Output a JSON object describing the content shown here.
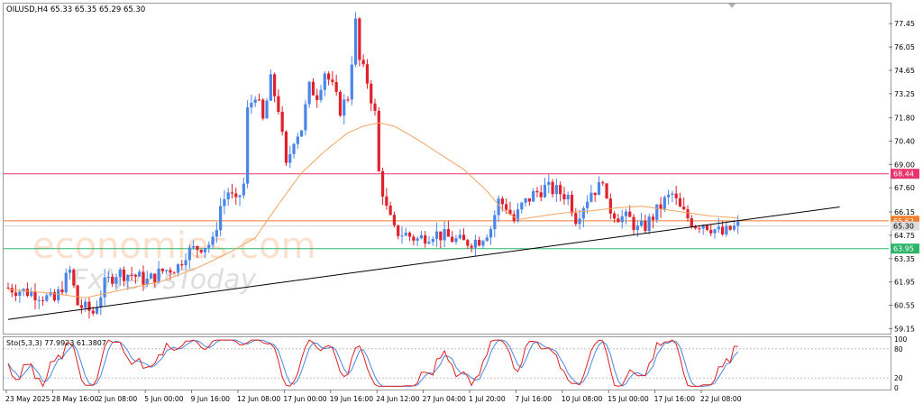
{
  "header": {
    "symbol_line": "OILUSD,H4  65.33 65.35 65.29 65.30"
  },
  "oscillator": {
    "label": "Sto(5,3,3) 77.9923 61.3807",
    "levels": [
      "100",
      "80",
      "20",
      "0"
    ]
  },
  "watermark": {
    "line1": "economies.com",
    "line2": "FxNewsToday"
  },
  "colors": {
    "bull": "#4a86e8",
    "bear": "#e0202a",
    "ma": "#f4a460",
    "trendline": "#000000",
    "resistance": "#e8336e",
    "mid_level": "#f07c2c",
    "support": "#2fb56a",
    "stoch_main": "#e02020",
    "stoch_signal": "#4a86e8"
  },
  "chart_data": {
    "type": "candlestick",
    "symbol": "OILUSD",
    "timeframe": "H4",
    "ylim": [
      58.9,
      78.6
    ],
    "y_ticks": [
      "77.45",
      "76.05",
      "74.65",
      "73.25",
      "71.80",
      "70.40",
      "69.00",
      "67.60",
      "66.15",
      "64.75",
      "63.35",
      "61.95",
      "60.55",
      "59.15"
    ],
    "x_labels": [
      "23 May 2025",
      "28 May 16:00",
      "2 Jun 08:00",
      "5 Jun 00:00",
      "9 Jun 16:00",
      "12 Jun 08:00",
      "17 Jun 00:00",
      "19 Jun 16:00",
      "24 Jun 12:00",
      "27 Jun 04:00",
      "1 Jul 20:00",
      "7 Jul 16:00",
      "10 Jul 08:00",
      "15 Jul 00:00",
      "17 Jul 16:00",
      "22 Jul 08:00"
    ],
    "horizontal_levels": [
      {
        "label": "68.44",
        "value": 68.44,
        "color": "#e8336e"
      },
      {
        "label": "65.62",
        "value": 65.62,
        "color": "#f07c2c"
      },
      {
        "label": "63.95",
        "value": 63.95,
        "color": "#2fb56a"
      }
    ],
    "current_price_label": "65.30",
    "current_price": 65.3,
    "trendline": {
      "start": {
        "bar": 0,
        "price": 59.7
      },
      "end": {
        "bar": 192,
        "price": 66.45
      }
    },
    "price_anchors": [
      [
        0,
        61.6
      ],
      [
        8,
        61.2
      ],
      [
        12,
        60.8
      ],
      [
        16,
        62.6
      ],
      [
        18,
        60.6
      ],
      [
        22,
        60.1
      ],
      [
        25,
        61.8
      ],
      [
        28,
        62.5
      ],
      [
        32,
        62.4
      ],
      [
        36,
        62.0
      ],
      [
        40,
        62.6
      ],
      [
        44,
        62.9
      ],
      [
        46,
        63.7
      ],
      [
        50,
        64.1
      ],
      [
        53,
        64.3
      ],
      [
        55,
        66.5
      ],
      [
        57,
        67.4
      ],
      [
        59,
        66.6
      ],
      [
        61,
        67.8
      ],
      [
        62,
        72.2
      ],
      [
        64,
        73.3
      ],
      [
        66,
        71.6
      ],
      [
        68,
        74.0
      ],
      [
        70,
        72.4
      ],
      [
        72,
        68.8
      ],
      [
        74,
        70.6
      ],
      [
        76,
        71.2
      ],
      [
        78,
        73.6
      ],
      [
        80,
        73.2
      ],
      [
        82,
        74.6
      ],
      [
        84,
        73.6
      ],
      [
        86,
        72.3
      ],
      [
        88,
        73.1
      ],
      [
        90,
        77.5
      ],
      [
        91,
        75.2
      ],
      [
        93,
        74.0
      ],
      [
        95,
        72.0
      ],
      [
        96,
        68.5
      ],
      [
        98,
        66.3
      ],
      [
        100,
        65.0
      ],
      [
        103,
        64.8
      ],
      [
        106,
        64.5
      ],
      [
        110,
        64.9
      ],
      [
        114,
        64.6
      ],
      [
        118,
        64.3
      ],
      [
        122,
        64.5
      ],
      [
        125,
        65.2
      ],
      [
        127,
        66.8
      ],
      [
        129,
        66.5
      ],
      [
        131,
        65.6
      ],
      [
        133,
        66.5
      ],
      [
        136,
        67.2
      ],
      [
        139,
        67.6
      ],
      [
        142,
        67.4
      ],
      [
        145,
        67.1
      ],
      [
        147,
        65.8
      ],
      [
        149,
        66.6
      ],
      [
        151,
        67.4
      ],
      [
        153,
        67.6
      ],
      [
        154,
        68.3
      ],
      [
        155,
        66.5
      ],
      [
        158,
        65.9
      ],
      [
        161,
        65.7
      ],
      [
        163,
        65.1
      ],
      [
        165,
        65.3
      ],
      [
        168,
        66.2
      ],
      [
        170,
        66.8
      ],
      [
        172,
        67.2
      ],
      [
        174,
        66.3
      ],
      [
        176,
        65.8
      ],
      [
        178,
        65.4
      ],
      [
        180,
        65.5
      ],
      [
        183,
        65.1
      ],
      [
        185,
        64.8
      ],
      [
        187,
        65.1
      ],
      [
        189,
        65.3
      ]
    ],
    "ma_anchors": [
      [
        0,
        61.5
      ],
      [
        10,
        61.3
      ],
      [
        20,
        61.0
      ],
      [
        30,
        61.5
      ],
      [
        40,
        62.0
      ],
      [
        50,
        62.9
      ],
      [
        58,
        63.8
      ],
      [
        64,
        64.6
      ],
      [
        70,
        66.6
      ],
      [
        76,
        68.5
      ],
      [
        82,
        69.8
      ],
      [
        88,
        70.9
      ],
      [
        92,
        71.3
      ],
      [
        96,
        71.5
      ],
      [
        100,
        71.3
      ],
      [
        106,
        70.5
      ],
      [
        112,
        69.6
      ],
      [
        118,
        68.7
      ],
      [
        124,
        67.4
      ],
      [
        128,
        66.3
      ],
      [
        132,
        65.7
      ],
      [
        138,
        65.9
      ],
      [
        144,
        66.1
      ],
      [
        150,
        66.2
      ],
      [
        154,
        66.3
      ],
      [
        158,
        66.4
      ],
      [
        164,
        66.5
      ],
      [
        170,
        66.3
      ],
      [
        176,
        66.1
      ],
      [
        182,
        65.9
      ],
      [
        189,
        65.8
      ]
    ],
    "oscillator": {
      "name": "Sto(5,3,3)",
      "main": 77.9923,
      "signal": 61.3807,
      "ylim": [
        0,
        100
      ],
      "levels": [
        80,
        20
      ]
    },
    "bars": 190
  }
}
